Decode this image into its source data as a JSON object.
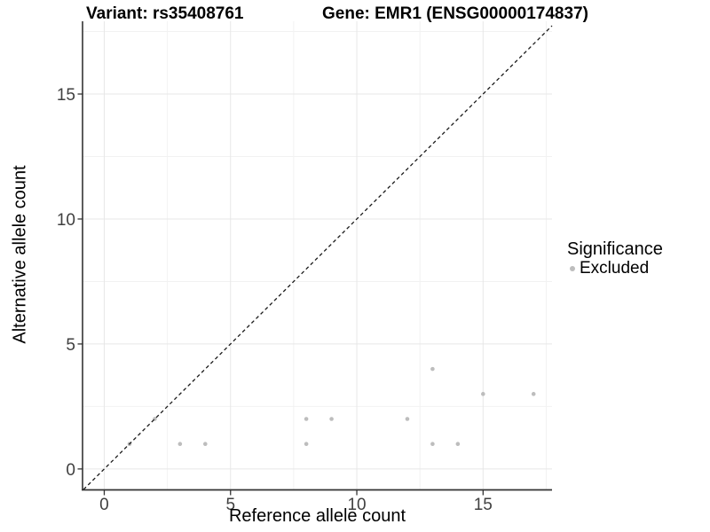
{
  "titles": {
    "variant": "Variant: rs35408761",
    "gene": "Gene: EMR1 (ENSG00000174837)"
  },
  "legend": {
    "title": "Significance",
    "items": [
      {
        "label": "Excluded",
        "color": "#bdbdbd"
      }
    ]
  },
  "chart_data": {
    "type": "scatter",
    "title": "Variant: rs35408761   Gene: EMR1 (ENSG00000174837)",
    "xlabel": "Reference allele count",
    "ylabel": "Alternative allele count",
    "xlim": [
      -0.86,
      17.73
    ],
    "ylim": [
      -0.82,
      17.91
    ],
    "x_ticks": [
      0,
      5,
      10,
      15
    ],
    "y_ticks": [
      0,
      5,
      10,
      15
    ],
    "x_minor_ticks": [
      2.5,
      7.5,
      12.5,
      17.5
    ],
    "y_minor_ticks": [
      2.5,
      7.5,
      12.5,
      17.5
    ],
    "grid": true,
    "legend_position": "right",
    "series": [
      {
        "name": "Excluded",
        "color": "#bdbdbd",
        "points": [
          [
            1,
            1
          ],
          [
            2,
            2
          ],
          [
            3,
            1
          ],
          [
            4,
            1
          ],
          [
            8,
            1
          ],
          [
            8,
            2
          ],
          [
            9,
            2
          ],
          [
            12,
            2
          ],
          [
            13,
            1
          ],
          [
            13,
            4
          ],
          [
            14,
            1
          ],
          [
            15,
            3
          ],
          [
            17,
            3
          ]
        ]
      }
    ],
    "reference_line": {
      "type": "identity",
      "equation": "y = x",
      "style": "dashed",
      "color": "#1a1a1a"
    }
  },
  "colors": {
    "point": "#bdbdbd",
    "grid_major": "#e7e7e7",
    "grid_minor": "#f2f2f2",
    "axis_line": "#333333",
    "tick_mark": "#333333",
    "tick_label": "#404040",
    "ref_line": "#1a1a1a",
    "background": "#ffffff"
  }
}
